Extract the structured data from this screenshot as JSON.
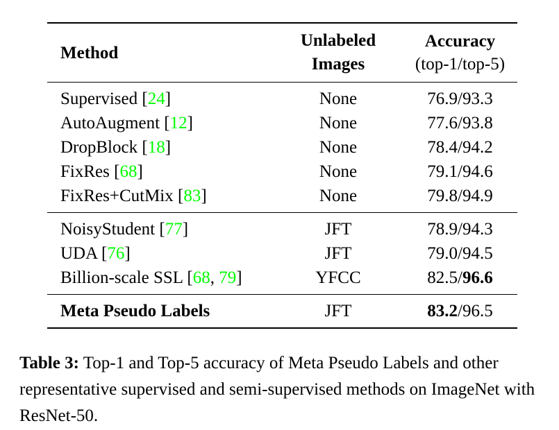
{
  "table": {
    "headers": {
      "method": "Method",
      "unlabeled": [
        "Unlabeled",
        "Images"
      ],
      "accuracy": "Accuracy",
      "accuracy_sub": "(top-1/top-5)"
    },
    "groups": [
      [
        {
          "name": "Supervised",
          "refs": [
            "24"
          ],
          "unlabeled": "None",
          "top1": "76.9",
          "top5": "93.3"
        },
        {
          "name": "AutoAugment",
          "refs": [
            "12"
          ],
          "unlabeled": "None",
          "top1": "77.6",
          "top5": "93.8"
        },
        {
          "name": "DropBlock",
          "refs": [
            "18"
          ],
          "unlabeled": "None",
          "top1": "78.4",
          "top5": "94.2"
        },
        {
          "name": "FixRes",
          "refs": [
            "68"
          ],
          "unlabeled": "None",
          "top1": "79.1",
          "top5": "94.6"
        },
        {
          "name": "FixRes+CutMix",
          "refs": [
            "83"
          ],
          "unlabeled": "None",
          "top1": "79.8",
          "top5": "94.9"
        }
      ],
      [
        {
          "name": "NoisyStudent",
          "refs": [
            "77"
          ],
          "unlabeled": "JFT",
          "top1": "78.9",
          "top5": "94.3"
        },
        {
          "name": "UDA",
          "refs": [
            "76"
          ],
          "unlabeled": "JFT",
          "top1": "79.0",
          "top5": "94.5"
        },
        {
          "name": "Billion-scale SSL",
          "refs": [
            "68",
            "79"
          ],
          "unlabeled": "YFCC",
          "top1": "82.5",
          "top5": "96.6"
        }
      ],
      [
        {
          "name": "Meta Pseudo Labels",
          "refs": [],
          "unlabeled": "JFT",
          "top1": "83.2",
          "top5": "96.5"
        }
      ]
    ]
  },
  "caption": {
    "label": "Table 3:",
    "text": "Top-1 and Top-5 accuracy of Meta Pseudo Labels and other representative supervised and semi-supervised methods on ImageNet with ResNet-50."
  },
  "colors": {
    "citation": "#00ff00"
  }
}
